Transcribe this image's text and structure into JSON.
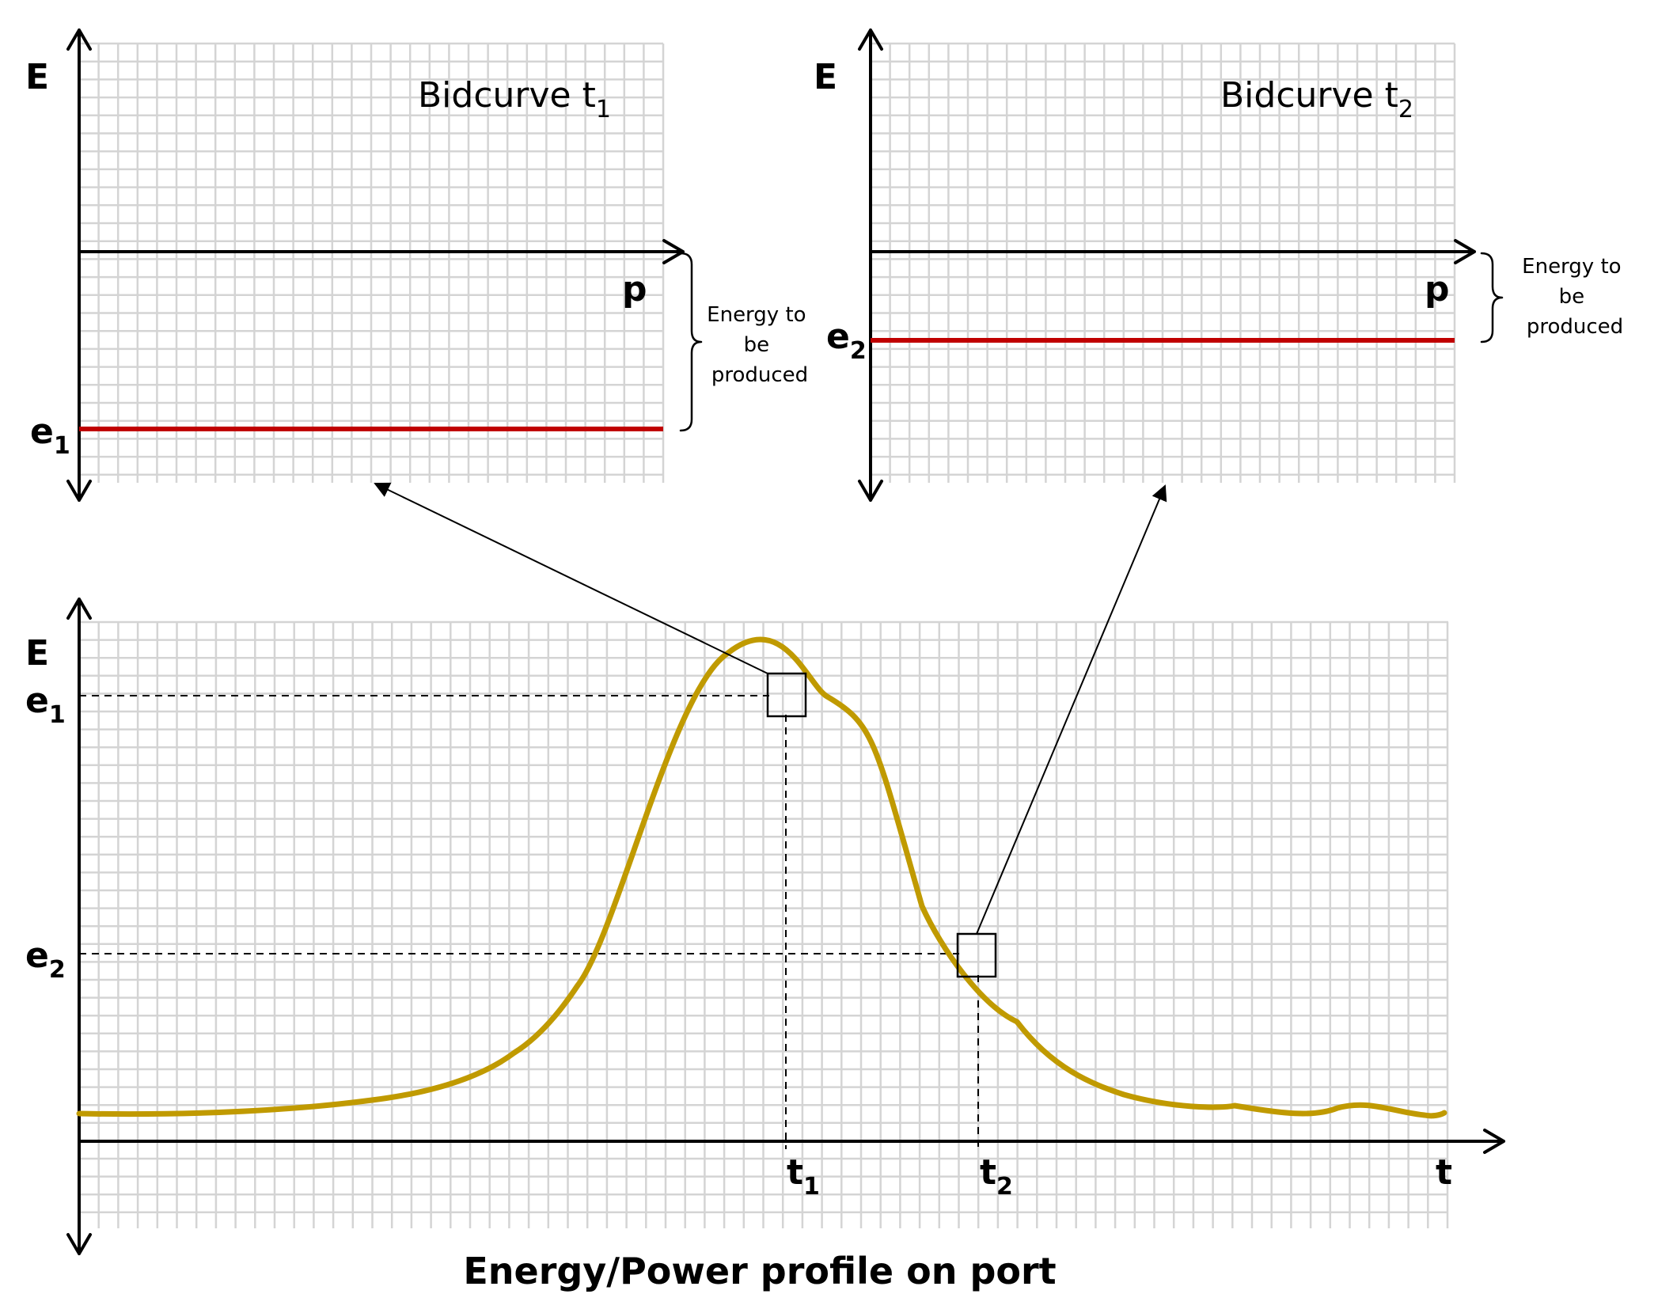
{
  "panels": [
    {
      "id": "bidcurve-t1",
      "title": "Bidcurve t",
      "title_sub": "1",
      "y_axis_label": "E",
      "x_axis_label": "p",
      "level_label": "e",
      "level_label_sub": "1",
      "bracket_text": [
        "Energy to",
        "be",
        "produced"
      ]
    },
    {
      "id": "bidcurve-t2",
      "title": "Bidcurve t",
      "title_sub": "2",
      "y_axis_label": "E",
      "x_axis_label": "p",
      "level_label": "e",
      "level_label_sub": "2",
      "bracket_text": [
        "Energy to",
        "be",
        "produced"
      ]
    }
  ],
  "profile": {
    "caption": "Energy/Power profile on port",
    "y_axis_label": "E",
    "x_axis_label": "t",
    "e1_label": "e",
    "e1_sub": "1",
    "e2_label": "e",
    "e2_sub": "2",
    "t1_label": "t",
    "t1_sub": "1",
    "t2_label": "t",
    "t2_sub": "2"
  },
  "colors": {
    "curve": "#c09a00",
    "level_line": "#c00000",
    "grid": "#d4d4d4",
    "axis": "#000000"
  }
}
